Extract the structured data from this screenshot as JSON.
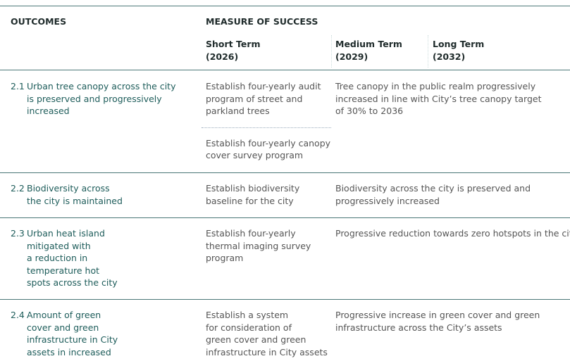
{
  "header": {
    "outcomes": "OUTCOMES",
    "measure": "MEASURE OF SUCCESS",
    "terms": [
      {
        "name": "Short Term",
        "year": "(2026)"
      },
      {
        "name": "Medium Term",
        "year": "(2029)"
      },
      {
        "name": "Long Term",
        "year": "(2032)"
      }
    ]
  },
  "rows": [
    {
      "number": "2.1",
      "outcome": [
        "Urban tree canopy across the city",
        "is preserved and progressively",
        "increased"
      ],
      "short": [
        [
          "Establish four-yearly audit",
          "program of street and",
          "parkland trees"
        ],
        [
          "Establish four-yearly canopy",
          "cover survey program"
        ]
      ],
      "longer": [
        "Tree canopy in the public realm progressively",
        "increased in line with City’s tree canopy target",
        "of 30% to 2036"
      ]
    },
    {
      "number": "2.2",
      "outcome": [
        "Biodiversity across",
        "the city is maintained"
      ],
      "short": [
        [
          "Establish biodiversity",
          "baseline for the city"
        ]
      ],
      "longer": [
        "Biodiversity across the city is preserved and",
        "progressively increased"
      ]
    },
    {
      "number": "2.3",
      "outcome": [
        "Urban heat island",
        "mitigated with",
        "a reduction in",
        "temperature hot",
        "spots across the city"
      ],
      "short": [
        [
          "Establish four-yearly",
          "thermal imaging survey",
          "program"
        ]
      ],
      "longer": [
        "Progressive reduction towards zero hotspots in the city"
      ]
    },
    {
      "number": "2.4",
      "outcome": [
        "Amount of green",
        "cover and green",
        "infrastructure in City",
        "assets in increased"
      ],
      "short": [
        [
          "Establish a system",
          "for consideration of",
          "green cover and green",
          "infrastructure in City assets"
        ]
      ],
      "longer": [
        "Progressive increase in green cover and green",
        "infrastructure across the City’s assets"
      ]
    }
  ]
}
